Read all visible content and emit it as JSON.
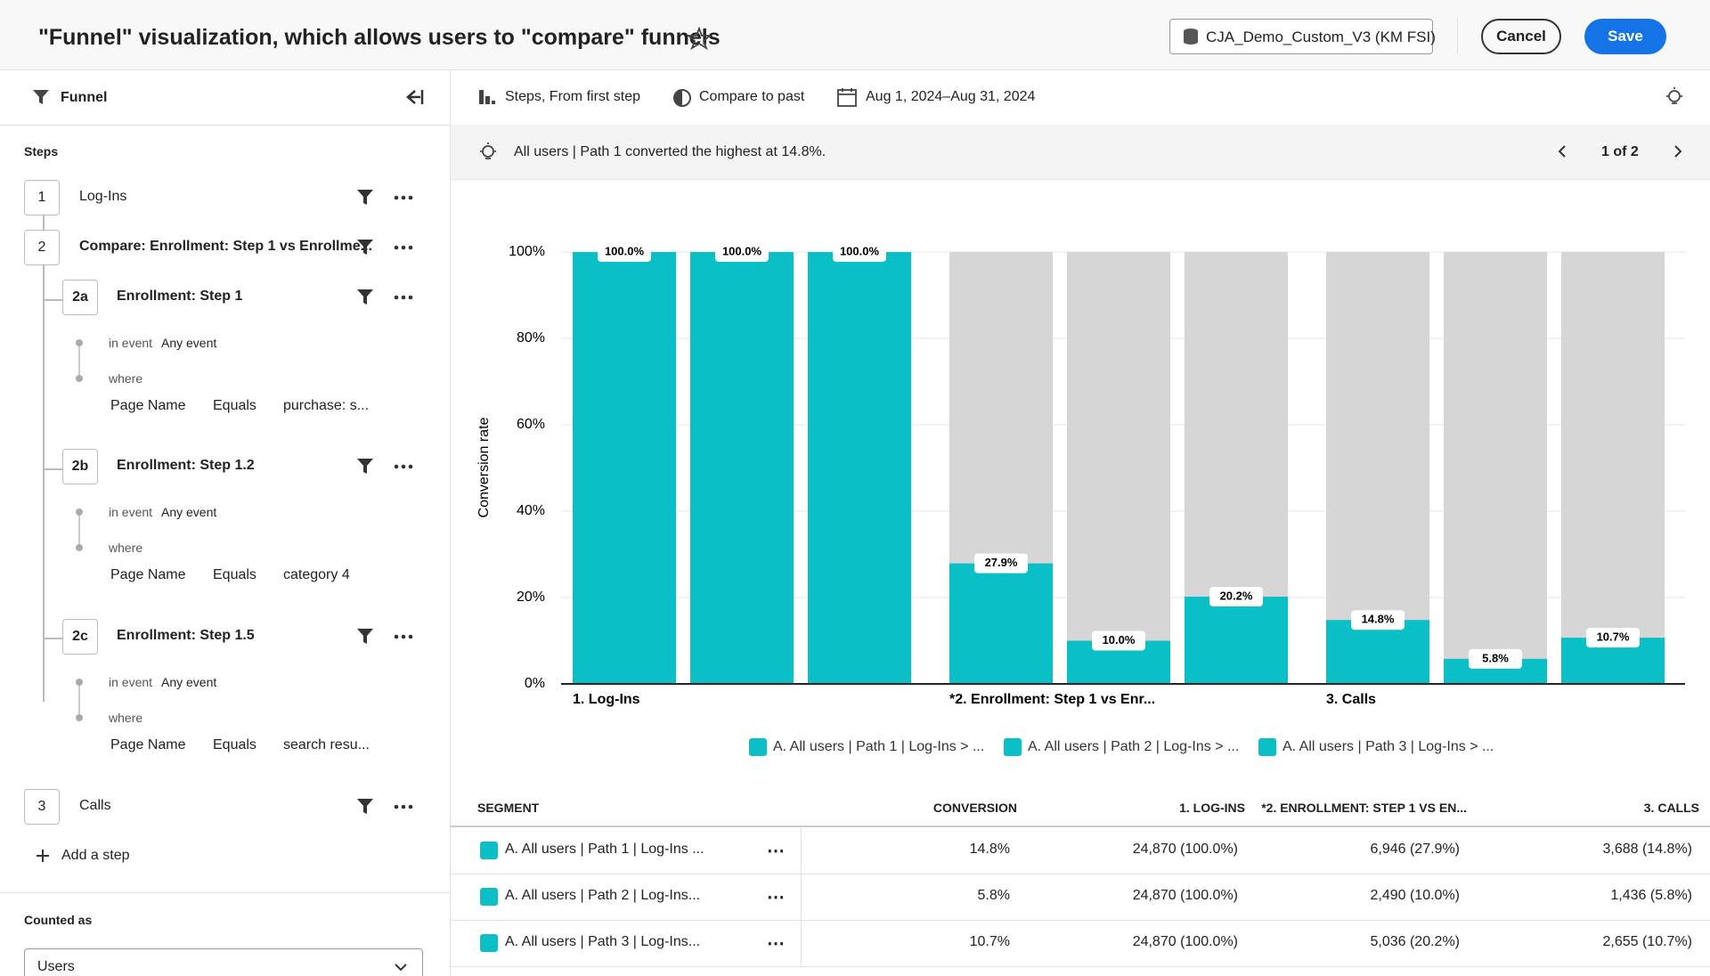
{
  "header": {
    "title": "\"Funnel\" visualization, which allows users to \"compare\" funnels",
    "data_source": "CJA_Demo_Custom_V3 (KM FSI)",
    "cancel": "Cancel",
    "save": "Save"
  },
  "panel": {
    "title": "Funnel",
    "steps_label": "Steps",
    "steps": [
      {
        "number": "1",
        "label": "Log-Ins"
      },
      {
        "number": "2",
        "label": "Compare: Enrollment: Step 1 vs Enrollme...",
        "substeps": [
          {
            "id": "2a",
            "label": "Enrollment: Step 1",
            "in_event": "in event",
            "event": "Any event",
            "where": "where",
            "field": "Page Name",
            "op": "Equals",
            "value": "purchase: s..."
          },
          {
            "id": "2b",
            "label": "Enrollment: Step 1.2",
            "in_event": "in event",
            "event": "Any event",
            "where": "where",
            "field": "Page Name",
            "op": "Equals",
            "value": "category 4"
          },
          {
            "id": "2c",
            "label": "Enrollment: Step 1.5",
            "in_event": "in event",
            "event": "Any event",
            "where": "where",
            "field": "Page Name",
            "op": "Equals",
            "value": "search resu..."
          }
        ]
      },
      {
        "number": "3",
        "label": "Calls"
      }
    ],
    "add_step": "Add a step",
    "counted_as": "Counted as",
    "counted_value": "Users"
  },
  "toolbar": {
    "steps": "Steps, From first step",
    "compare": "Compare to past",
    "date": "Aug 1, 2024–Aug 31, 2024"
  },
  "insight": {
    "text": "All users | Path 1 converted the highest at 14.8%.",
    "pager": "1 of 2"
  },
  "chart_data": {
    "type": "bar",
    "y_label": "Conversion rate",
    "categories": [
      "1. Log-Ins",
      "*2. Enrollment: Step 1 vs Enr...",
      "3. Calls"
    ],
    "ylim": [
      0,
      100
    ],
    "yticks": [
      {
        "value": 0,
        "label": "0%"
      },
      {
        "value": 20,
        "label": "20%"
      },
      {
        "value": 40,
        "label": "40%"
      },
      {
        "value": 60,
        "label": "60%"
      },
      {
        "value": 80,
        "label": "80%"
      },
      {
        "value": 100,
        "label": "100%"
      }
    ],
    "grid": true,
    "legend": "bottom",
    "series": [
      {
        "name": "A. All users | Path 1 | Log-Ins > ...",
        "color": "#0abfc5",
        "values": [
          100,
          27.9,
          14.8
        ],
        "value_labels": [
          "100.0%",
          "27.9%",
          "14.8%"
        ]
      },
      {
        "name": "A. All users | Path 2 | Log-Ins > ...",
        "color": "#0abfc5",
        "values": [
          100,
          10.0,
          5.8
        ],
        "value_labels": [
          "100.0%",
          "10.0%",
          "5.8%"
        ]
      },
      {
        "name": "A. All users | Path 3 | Log-Ins > ...",
        "color": "#0abfc5",
        "values": [
          100,
          20.2,
          10.7
        ],
        "value_labels": [
          "100.0%",
          "20.2%",
          "10.7%"
        ]
      }
    ]
  },
  "table": {
    "headers": [
      "SEGMENT",
      "CONVERSION",
      "1. LOG-INS",
      "*2. ENROLLMENT: STEP 1 VS EN...",
      "3. CALLS"
    ],
    "rows": [
      [
        "A. All users | Path 1 | Log-Ins ...",
        "14.8%",
        "24,870 (100.0%)",
        "6,946 (27.9%)",
        "3,688 (14.8%)"
      ],
      [
        "A. All users | Path 2 | Log-Ins...",
        "5.8%",
        "24,870 (100.0%)",
        "2,490 (10.0%)",
        "1,436 (5.8%)"
      ],
      [
        "A. All users | Path 3 | Log-Ins...",
        "10.7%",
        "24,870 (100.0%)",
        "5,036 (20.2%)",
        "2,655 (10.7%)"
      ]
    ]
  }
}
